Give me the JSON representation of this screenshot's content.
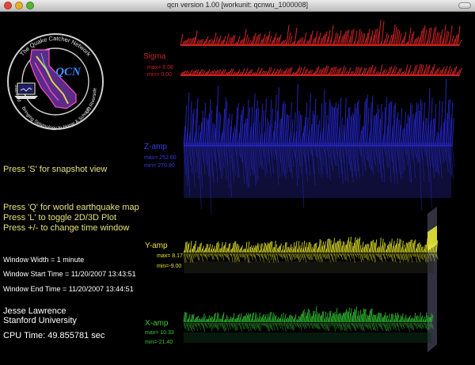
{
  "window": {
    "title": "qcn version 1.00 [workunit: qcnwu_1000008]"
  },
  "logo": {
    "ring_top": "The Quake Catcher Network",
    "ring_left": "Stanford",
    "ring_bottom": "Bringing Seismology to Home & Schools",
    "ring_right": "UC Riverside",
    "monogram": "QCN"
  },
  "instructions": {
    "snapshot": "Press 'S' for snapshot view",
    "world_map": "Press 'Q' for world earthquake map",
    "toggle_plot": "Press 'L' to toggle 2D/3D Plot",
    "time_window": "Press +/- to change time window"
  },
  "window_info": {
    "width": "Window Width = 1 minute",
    "start": "Window Start Time = 11/20/2007 13:43:51",
    "end": "Window End Time  = 11/20/2007 13:44:51"
  },
  "author": {
    "name": "Jesse Lawrence",
    "org": "Stanford University",
    "cpu": "CPU Time: 49.855781 sec"
  },
  "traces": [
    {
      "id": "sigma",
      "label": "Sigma",
      "max": "max= 8.08",
      "min": "min= 0.00",
      "color": "#cc2222",
      "label_color": "#cc2020"
    },
    {
      "id": "zamp",
      "label": "Z-amp",
      "max": "max= 252.60",
      "min": "min= 270.90",
      "color": "#2a2adf",
      "label_color": "#3b3bf0"
    },
    {
      "id": "yamp",
      "label": "Y-amp",
      "max": "max= 8.17",
      "min": "min=-9.00",
      "color": "#d9d92a",
      "label_color": "#e5e530"
    },
    {
      "id": "xamp",
      "label": "X-amp",
      "max": "max= 10.33",
      "min": "min=-21.40",
      "color": "#2fb52f",
      "label_color": "#3acb3a"
    }
  ]
}
